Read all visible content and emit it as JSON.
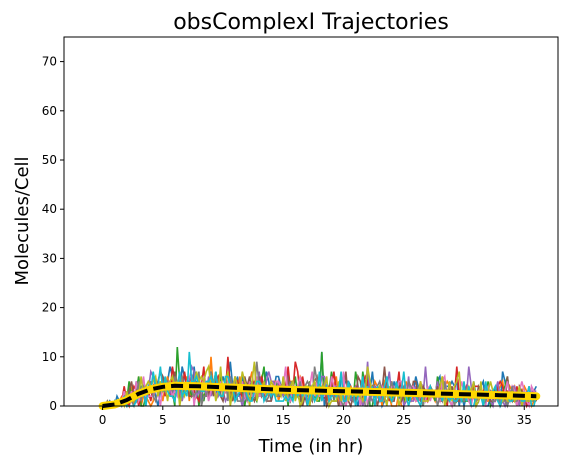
{
  "chart_data": {
    "type": "line",
    "title": "obsComplexI Trajectories",
    "xlabel": "Time (in hr)",
    "ylabel": "Molecules/Cell",
    "xlim": [
      -3.2,
      37.8
    ],
    "ylim": [
      0,
      75
    ],
    "xticks": [
      0,
      5,
      10,
      15,
      20,
      25,
      30,
      35
    ],
    "yticks": [
      0,
      10,
      20,
      30,
      40,
      50,
      60,
      70
    ],
    "grid": false,
    "legend": "none",
    "trajectory_colors": [
      "#1f77b4",
      "#ff7f0e",
      "#2ca02c",
      "#d62728",
      "#9467bd",
      "#8c564b",
      "#e377c2",
      "#7f7f7f",
      "#bcbd22",
      "#17becf"
    ],
    "num_trajectories": 10,
    "trajectory_t_max": 36,
    "trajectory_peaks": [
      {
        "x": 6.2,
        "y": 12
      },
      {
        "x": 18.2,
        "y": 11
      }
    ],
    "series": [
      {
        "style": "yellow band (spread)",
        "color": "#ffd700",
        "x": [
          0,
          1,
          2,
          3,
          4,
          5,
          6,
          8,
          10,
          12,
          15,
          20,
          25,
          30,
          33,
          36
        ],
        "values": [
          0,
          0.3,
          1.2,
          2.5,
          3.4,
          3.9,
          4.1,
          4.0,
          3.8,
          3.6,
          3.3,
          3.0,
          2.7,
          2.4,
          2.2,
          2.0
        ]
      },
      {
        "style": "dashed mean",
        "color": "#000000",
        "x": [
          0,
          1,
          2,
          3,
          4,
          5,
          6,
          8,
          10,
          12,
          15,
          20,
          25,
          30,
          33,
          36
        ],
        "values": [
          0,
          0.3,
          1.2,
          2.5,
          3.4,
          3.9,
          4.1,
          4.0,
          3.8,
          3.6,
          3.3,
          3.0,
          2.7,
          2.4,
          2.2,
          2.0
        ]
      }
    ]
  }
}
